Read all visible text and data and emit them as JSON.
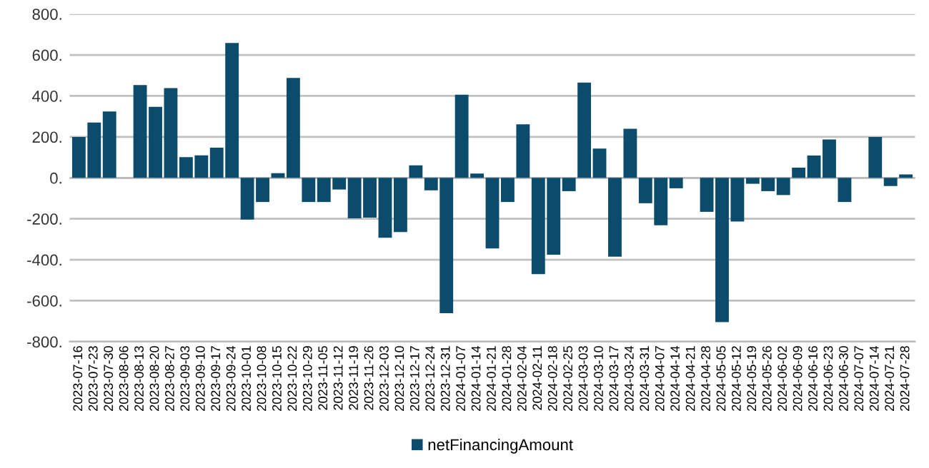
{
  "chart_data": {
    "type": "bar",
    "categories": [
      "2023-07-16",
      "2023-07-23",
      "2023-07-30",
      "2023-08-06",
      "2023-08-13",
      "2023-08-20",
      "2023-08-27",
      "2023-09-03",
      "2023-09-10",
      "2023-09-17",
      "2023-09-24",
      "2023-10-01",
      "2023-10-08",
      "2023-10-15",
      "2023-10-22",
      "2023-10-29",
      "2023-11-05",
      "2023-11-12",
      "2023-11-19",
      "2023-11-26",
      "2023-12-03",
      "2023-12-10",
      "2023-12-17",
      "2023-12-24",
      "2023-12-31",
      "2024-01-07",
      "2024-01-14",
      "2024-01-21",
      "2024-01-28",
      "2024-02-04",
      "2024-02-11",
      "2024-02-18",
      "2024-02-25",
      "2024-03-03",
      "2024-03-10",
      "2024-03-17",
      "2024-03-24",
      "2024-03-31",
      "2024-04-07",
      "2024-04-14",
      "2024-04-21",
      "2024-04-28",
      "2024-05-05",
      "2024-05-12",
      "2024-05-19",
      "2024-05-26",
      "2024-06-02",
      "2024-06-09",
      "2024-06-16",
      "2024-06-23",
      "2024-06-30",
      "2024-07-07",
      "2024-07-14",
      "2024-07-21",
      "2024-07-28"
    ],
    "series": [
      {
        "name": "netFinancingAmount",
        "color": "#0b4b6b",
        "values": [
          200,
          270,
          324,
          0,
          453,
          347,
          438,
          101,
          110,
          147,
          659,
          -204,
          -118,
          23,
          488,
          -118,
          -118,
          -57,
          -198,
          -194,
          -293,
          -265,
          61,
          -61,
          -661,
          406,
          21,
          -345,
          -118,
          261,
          -470,
          -375,
          -65,
          465,
          143,
          -385,
          240,
          -124,
          -232,
          -51,
          0,
          -166,
          -705,
          -213,
          -29,
          -65,
          -84,
          50,
          109,
          187,
          -118,
          0,
          200,
          -40,
          17
        ]
      }
    ],
    "ylim": [
      -800,
      800
    ],
    "yticks": [
      {
        "value": -800,
        "label": "-800."
      },
      {
        "value": -600,
        "label": "-600."
      },
      {
        "value": -400,
        "label": "-400."
      },
      {
        "value": -200,
        "label": "-200."
      },
      {
        "value": 0,
        "label": "0."
      },
      {
        "value": 200,
        "label": "200."
      },
      {
        "value": 400,
        "label": "400."
      },
      {
        "value": 600,
        "label": "600."
      },
      {
        "value": 800,
        "label": "800."
      }
    ],
    "grid": "y",
    "legend": "bottom"
  }
}
